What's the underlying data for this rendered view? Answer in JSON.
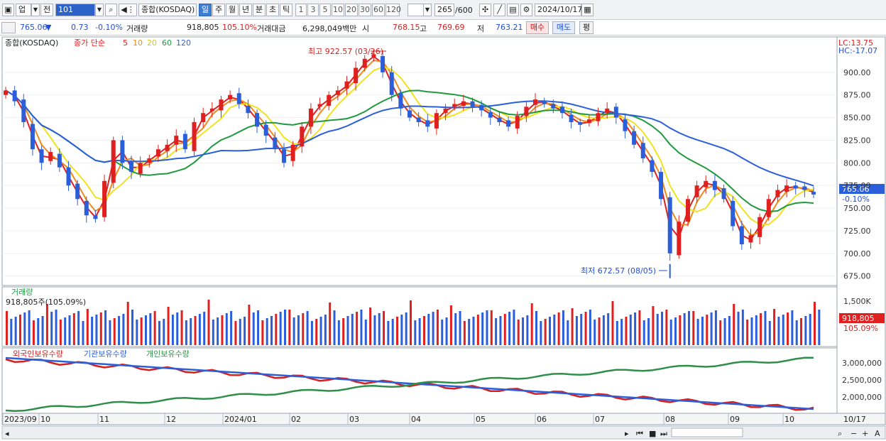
{
  "toolbar": {
    "market": "업",
    "scope": "전",
    "code": "101",
    "name": "종합(KOSDAQ)",
    "periods": [
      "일",
      "주",
      "월",
      "년",
      "분",
      "초",
      "틱"
    ],
    "selected_period": "일",
    "minute_steps": [
      "1",
      "3",
      "5",
      "10",
      "20",
      "30",
      "60",
      "120"
    ],
    "count": "265",
    "count_total": "/600",
    "date": "2024/10/17"
  },
  "quote": {
    "price": "765.06",
    "change": "0.73",
    "change_pct": "-0.10%",
    "volume_label": "거래량",
    "volume": "918,805",
    "volume_pct": "105.10%",
    "amount_label": "거래대금",
    "amount": "6,298,049백만",
    "open_label": "시",
    "open": "768.15",
    "high_label": "고",
    "high": "769.69",
    "low_label": "저",
    "low": "763.21",
    "buy": "매수",
    "sell": "매도",
    "avg": "평"
  },
  "price_panel": {
    "title": "종합(KOSDAQ)",
    "ma_label": "종가 단순",
    "ma_periods": [
      "5",
      "10",
      "20",
      "60",
      "120"
    ],
    "ma_colors": [
      "#e01f1f",
      "#f08a1a",
      "#f2e21c",
      "#1f9a3f",
      "#2b5fd9"
    ],
    "lc": "LC:13.75",
    "hc": "HC:-17.07",
    "high_note": "최고 922.57 (03/26)",
    "low_note": "최저 672.57 (08/05)",
    "last_price": "765.06",
    "last_pct": "-0.10%",
    "y_ticks": [
      "900.00",
      "875.00",
      "850.00",
      "825.00",
      "800.00",
      "775.00",
      "750.00",
      "725.00",
      "700.00",
      "675.00"
    ]
  },
  "volume_panel": {
    "title": "거래량",
    "value": "918,805주(105.09%)",
    "y_tick": "1,500K",
    "last": "918,805",
    "last_pct": "105.09%"
  },
  "holding_panel": {
    "legend": [
      "외국인보유수량",
      "기관보유수량",
      "개인보유수량"
    ],
    "colors": [
      "#d61f1f",
      "#2b5fd9",
      "#2f8f4a"
    ],
    "y_ticks": [
      "3,000,000",
      "2,500,000",
      "2,000,000"
    ]
  },
  "x_axis": [
    "2023/09",
    "10",
    "11",
    "12",
    "2024/01",
    "02",
    "03",
    "04",
    "05",
    "06",
    "07",
    "08",
    "09",
    "10",
    "10/17"
  ],
  "chart_data": {
    "type": "candlestick",
    "title": "종합(KOSDAQ)",
    "ylim": [
      670,
      925
    ],
    "high": {
      "value": 922.57,
      "date": "03/26"
    },
    "low": {
      "value": 672.57,
      "date": "08/05"
    },
    "last": 765.06,
    "close": [
      880,
      868,
      845,
      815,
      800,
      812,
      795,
      775,
      760,
      742,
      738,
      780,
      825,
      800,
      790,
      800,
      805,
      815,
      820,
      830,
      815,
      845,
      855,
      860,
      870,
      875,
      865,
      855,
      840,
      830,
      815,
      800,
      820,
      840,
      860,
      865,
      875,
      880,
      890,
      905,
      915,
      920,
      900,
      875,
      860,
      850,
      845,
      840,
      855,
      860,
      865,
      868,
      862,
      858,
      850,
      845,
      840,
      852,
      862,
      870,
      865,
      860,
      855,
      845,
      842,
      848,
      855,
      860,
      850,
      835,
      820,
      805,
      790,
      760,
      700,
      735,
      760,
      775,
      780,
      770,
      760,
      730,
      710,
      720,
      740,
      760,
      770,
      775,
      772,
      770,
      765
    ]
  }
}
